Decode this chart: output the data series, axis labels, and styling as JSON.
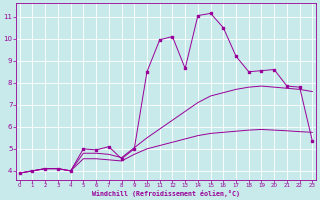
{
  "xlabel": "Windchill (Refroidissement éolien,°C)",
  "background_color": "#c8eaea",
  "grid_color": "#ffffff",
  "line_color": "#990099",
  "x_ticks": [
    0,
    1,
    2,
    3,
    4,
    5,
    6,
    7,
    8,
    9,
    10,
    11,
    12,
    13,
    14,
    15,
    16,
    17,
    18,
    19,
    20,
    21,
    22,
    23
  ],
  "y_ticks": [
    4,
    5,
    6,
    7,
    8,
    9,
    10,
    11
  ],
  "xlim": [
    -0.3,
    23.3
  ],
  "ylim": [
    3.6,
    11.6
  ],
  "series_spike_x": [
    0,
    1,
    2,
    3,
    4,
    5,
    6,
    7,
    8,
    9,
    10,
    11,
    12,
    13,
    14,
    15,
    16,
    17,
    18,
    19,
    20,
    21,
    22,
    23
  ],
  "series_spike_y": [
    3.9,
    4.0,
    4.1,
    4.1,
    4.0,
    5.0,
    4.95,
    5.1,
    4.55,
    5.0,
    8.5,
    9.95,
    10.1,
    8.65,
    11.05,
    11.15,
    10.5,
    9.2,
    8.5,
    8.55,
    8.6,
    7.85,
    7.8,
    5.35
  ],
  "series_upper_x": [
    0,
    1,
    2,
    3,
    4,
    5,
    6,
    7,
    8,
    9,
    10,
    11,
    12,
    13,
    14,
    15,
    16,
    17,
    18,
    19,
    20,
    21,
    22,
    23
  ],
  "series_upper_y": [
    3.9,
    4.0,
    4.1,
    4.1,
    4.0,
    4.8,
    4.8,
    4.75,
    4.6,
    5.05,
    5.5,
    5.9,
    6.3,
    6.7,
    7.1,
    7.4,
    7.55,
    7.7,
    7.8,
    7.85,
    7.8,
    7.75,
    7.7,
    7.6
  ],
  "series_lower_x": [
    0,
    1,
    2,
    3,
    4,
    5,
    6,
    7,
    8,
    9,
    10,
    11,
    12,
    13,
    14,
    15,
    16,
    17,
    18,
    19,
    20,
    21,
    22,
    23
  ],
  "series_lower_y": [
    3.9,
    4.0,
    4.1,
    4.1,
    4.0,
    4.55,
    4.55,
    4.5,
    4.45,
    4.75,
    5.0,
    5.15,
    5.3,
    5.45,
    5.6,
    5.7,
    5.75,
    5.8,
    5.85,
    5.88,
    5.85,
    5.82,
    5.78,
    5.75
  ]
}
